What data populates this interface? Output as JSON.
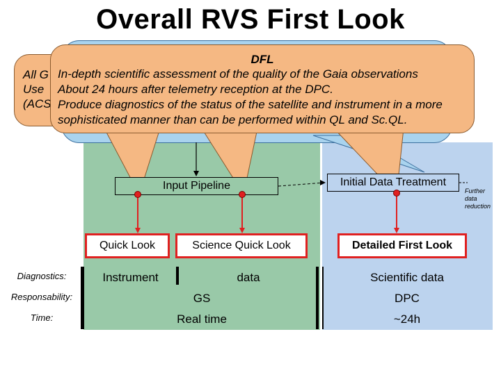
{
  "title": "Overall RVS First Look",
  "callouts": {
    "dfl_heading": "DFL",
    "dfl_lines": [
      "In-depth scientific assessment of the quality of the Gaia observations",
      "About 24 hours after telemetry reception at the DPC.",
      "Produce diagnostics of the status of the satellite and instrument in a more",
      "sophisticated manner than can be performed within QL and Sc.QL."
    ],
    "back_fragments": [
      "All G",
      "Use",
      "(ACS"
    ]
  },
  "pipeline": {
    "input_pipeline": "Input Pipeline",
    "initial_data_treatment": "Initial Data Treatment",
    "further_data_reduction": [
      "Further",
      "data",
      "reduction"
    ]
  },
  "stages": {
    "quick_look": "Quick Look",
    "science_quick_look": "Science Quick Look",
    "detailed_first_look": "Detailed First Look"
  },
  "rows": {
    "diagnostics": {
      "label": "Diagnostics:",
      "instrument": "Instrument",
      "data": "data",
      "scientific": "Scientific data"
    },
    "responsability": {
      "label": "Responsability:",
      "gs": "GS",
      "dpc": "DPC"
    },
    "time": {
      "label": "Time:",
      "realtime": "Real time",
      "day": "~24h"
    }
  },
  "colors": {
    "gs_panel": "#99c9a8",
    "dpc_panel": "#bcd3ee",
    "callout_fill": "#f5b883",
    "bubble_fill": "#a9d3ee",
    "stage_border": "#e02020"
  }
}
